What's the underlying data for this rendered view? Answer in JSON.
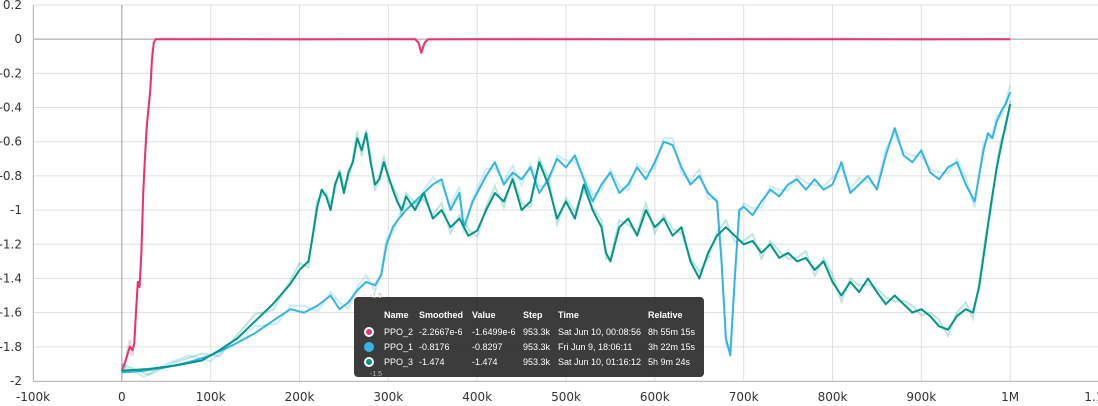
{
  "chart_data": {
    "type": "line",
    "title": "",
    "xlabel": "",
    "ylabel": "",
    "xlim": [
      -100000,
      1100000
    ],
    "ylim": [
      -2,
      0.2
    ],
    "grid": true,
    "x_ticks": [
      -100000,
      0,
      100000,
      200000,
      300000,
      400000,
      500000,
      600000,
      700000,
      800000,
      900000,
      1000000,
      1100000
    ],
    "x_tick_labels": [
      "-100k",
      "0",
      "100k",
      "200k",
      "300k",
      "400k",
      "500k",
      "600k",
      "700k",
      "800k",
      "900k",
      "1M",
      "1.1M"
    ],
    "y_ticks": [
      0.2,
      0,
      -0.2,
      -0.4,
      -0.6,
      -0.8,
      -1,
      -1.2,
      -1.4,
      -1.6,
      -1.8,
      -2
    ],
    "y_tick_labels": [
      "0.2",
      "0",
      "-0.2",
      "-0.4",
      "-0.6",
      "-0.8",
      "-1",
      "-1.2",
      "-1.4",
      "-1.6",
      "-1.8",
      "-2"
    ],
    "series": [
      {
        "name": "PPO_2",
        "color": "#e8336f",
        "points": [
          [
            0,
            -1.94
          ],
          [
            3000,
            -1.9
          ],
          [
            6000,
            -1.85
          ],
          [
            9000,
            -1.8
          ],
          [
            12000,
            -1.82
          ],
          [
            14000,
            -1.78
          ],
          [
            16000,
            -1.6
          ],
          [
            18000,
            -1.42
          ],
          [
            20000,
            -1.45
          ],
          [
            22000,
            -1.25
          ],
          [
            24000,
            -0.9
          ],
          [
            26000,
            -0.7
          ],
          [
            28000,
            -0.52
          ],
          [
            30000,
            -0.4
          ],
          [
            32000,
            -0.3
          ],
          [
            34000,
            -0.12
          ],
          [
            36000,
            -0.02
          ],
          [
            38000,
            0
          ],
          [
            100000,
            0
          ],
          [
            200000,
            0
          ],
          [
            300000,
            0
          ],
          [
            330000,
            0
          ],
          [
            334000,
            -0.02
          ],
          [
            337000,
            -0.08
          ],
          [
            341000,
            -0.02
          ],
          [
            345000,
            0
          ],
          [
            400000,
            0
          ],
          [
            500000,
            0
          ],
          [
            600000,
            0
          ],
          [
            700000,
            0
          ],
          [
            800000,
            0
          ],
          [
            900000,
            0
          ],
          [
            1000000,
            0
          ]
        ]
      },
      {
        "name": "PPO_1",
        "color": "#33b5e5",
        "points": [
          [
            0,
            -1.95
          ],
          [
            25000,
            -1.94
          ],
          [
            50000,
            -1.92
          ],
          [
            75000,
            -1.89
          ],
          [
            100000,
            -1.85
          ],
          [
            125000,
            -1.79
          ],
          [
            150000,
            -1.72
          ],
          [
            175000,
            -1.63
          ],
          [
            190000,
            -1.58
          ],
          [
            205000,
            -1.6
          ],
          [
            220000,
            -1.56
          ],
          [
            235000,
            -1.5
          ],
          [
            245000,
            -1.58
          ],
          [
            255000,
            -1.54
          ],
          [
            265000,
            -1.47
          ],
          [
            275000,
            -1.42
          ],
          [
            285000,
            -1.44
          ],
          [
            292000,
            -1.38
          ],
          [
            298000,
            -1.2
          ],
          [
            305000,
            -1.1
          ],
          [
            312000,
            -1.05
          ],
          [
            320000,
            -1.0
          ],
          [
            330000,
            -0.95
          ],
          [
            340000,
            -0.9
          ],
          [
            350000,
            -0.85
          ],
          [
            360000,
            -0.82
          ],
          [
            370000,
            -1.0
          ],
          [
            380000,
            -0.9
          ],
          [
            385000,
            -1.1
          ],
          [
            395000,
            -0.95
          ],
          [
            410000,
            -0.8
          ],
          [
            420000,
            -0.72
          ],
          [
            430000,
            -0.85
          ],
          [
            440000,
            -0.78
          ],
          [
            450000,
            -0.82
          ],
          [
            460000,
            -0.75
          ],
          [
            470000,
            -0.9
          ],
          [
            480000,
            -0.82
          ],
          [
            490000,
            -0.7
          ],
          [
            500000,
            -0.75
          ],
          [
            510000,
            -0.68
          ],
          [
            520000,
            -0.82
          ],
          [
            530000,
            -0.95
          ],
          [
            540000,
            -0.85
          ],
          [
            550000,
            -0.78
          ],
          [
            560000,
            -0.9
          ],
          [
            570000,
            -0.85
          ],
          [
            580000,
            -0.75
          ],
          [
            590000,
            -0.82
          ],
          [
            600000,
            -0.72
          ],
          [
            610000,
            -0.6
          ],
          [
            620000,
            -0.62
          ],
          [
            630000,
            -0.75
          ],
          [
            640000,
            -0.85
          ],
          [
            650000,
            -0.8
          ],
          [
            660000,
            -0.9
          ],
          [
            670000,
            -0.95
          ],
          [
            675000,
            -1.3
          ],
          [
            680000,
            -1.75
          ],
          [
            685000,
            -1.85
          ],
          [
            690000,
            -1.4
          ],
          [
            695000,
            -1.0
          ],
          [
            700000,
            -0.98
          ],
          [
            710000,
            -1.03
          ],
          [
            720000,
            -0.95
          ],
          [
            730000,
            -0.88
          ],
          [
            740000,
            -0.92
          ],
          [
            750000,
            -0.85
          ],
          [
            760000,
            -0.82
          ],
          [
            770000,
            -0.88
          ],
          [
            780000,
            -0.82
          ],
          [
            790000,
            -0.88
          ],
          [
            800000,
            -0.85
          ],
          [
            810000,
            -0.72
          ],
          [
            820000,
            -0.9
          ],
          [
            830000,
            -0.85
          ],
          [
            840000,
            -0.8
          ],
          [
            850000,
            -0.88
          ],
          [
            860000,
            -0.68
          ],
          [
            870000,
            -0.52
          ],
          [
            880000,
            -0.68
          ],
          [
            890000,
            -0.72
          ],
          [
            900000,
            -0.65
          ],
          [
            910000,
            -0.78
          ],
          [
            920000,
            -0.82
          ],
          [
            930000,
            -0.75
          ],
          [
            940000,
            -0.72
          ],
          [
            950000,
            -0.85
          ],
          [
            960000,
            -0.95
          ],
          [
            965000,
            -0.8
          ],
          [
            970000,
            -0.65
          ],
          [
            975000,
            -0.55
          ],
          [
            980000,
            -0.58
          ],
          [
            985000,
            -0.48
          ],
          [
            990000,
            -0.42
          ],
          [
            995000,
            -0.38
          ],
          [
            1000000,
            -0.31
          ]
        ]
      },
      {
        "name": "PPO_3",
        "color": "#009688",
        "points": [
          [
            0,
            -1.94
          ],
          [
            30000,
            -1.93
          ],
          [
            60000,
            -1.91
          ],
          [
            90000,
            -1.88
          ],
          [
            110000,
            -1.82
          ],
          [
            130000,
            -1.75
          ],
          [
            150000,
            -1.65
          ],
          [
            170000,
            -1.55
          ],
          [
            190000,
            -1.43
          ],
          [
            200000,
            -1.35
          ],
          [
            210000,
            -1.3
          ],
          [
            215000,
            -1.15
          ],
          [
            220000,
            -0.98
          ],
          [
            225000,
            -0.88
          ],
          [
            230000,
            -0.92
          ],
          [
            235000,
            -1.0
          ],
          [
            240000,
            -0.85
          ],
          [
            245000,
            -0.78
          ],
          [
            250000,
            -0.9
          ],
          [
            255000,
            -0.78
          ],
          [
            260000,
            -0.72
          ],
          [
            265000,
            -0.58
          ],
          [
            270000,
            -0.65
          ],
          [
            275000,
            -0.55
          ],
          [
            280000,
            -0.72
          ],
          [
            285000,
            -0.85
          ],
          [
            290000,
            -0.82
          ],
          [
            295000,
            -0.72
          ],
          [
            300000,
            -0.8
          ],
          [
            305000,
            -0.88
          ],
          [
            310000,
            -0.95
          ],
          [
            315000,
            -1.0
          ],
          [
            320000,
            -0.92
          ],
          [
            330000,
            -1.0
          ],
          [
            340000,
            -0.9
          ],
          [
            350000,
            -1.05
          ],
          [
            360000,
            -1.0
          ],
          [
            370000,
            -1.1
          ],
          [
            380000,
            -1.05
          ],
          [
            390000,
            -1.15
          ],
          [
            400000,
            -1.12
          ],
          [
            410000,
            -1.0
          ],
          [
            420000,
            -0.9
          ],
          [
            430000,
            -0.95
          ],
          [
            440000,
            -0.82
          ],
          [
            450000,
            -1.0
          ],
          [
            460000,
            -0.95
          ],
          [
            470000,
            -0.72
          ],
          [
            480000,
            -0.85
          ],
          [
            490000,
            -1.05
          ],
          [
            500000,
            -0.95
          ],
          [
            510000,
            -1.05
          ],
          [
            520000,
            -0.85
          ],
          [
            530000,
            -1.0
          ],
          [
            540000,
            -1.1
          ],
          [
            545000,
            -1.25
          ],
          [
            550000,
            -1.3
          ],
          [
            560000,
            -1.1
          ],
          [
            570000,
            -1.05
          ],
          [
            580000,
            -1.15
          ],
          [
            590000,
            -1.0
          ],
          [
            600000,
            -1.1
          ],
          [
            610000,
            -1.05
          ],
          [
            620000,
            -1.15
          ],
          [
            630000,
            -1.1
          ],
          [
            640000,
            -1.3
          ],
          [
            650000,
            -1.4
          ],
          [
            660000,
            -1.25
          ],
          [
            670000,
            -1.15
          ],
          [
            680000,
            -1.1
          ],
          [
            690000,
            -1.15
          ],
          [
            700000,
            -1.2
          ],
          [
            710000,
            -1.18
          ],
          [
            720000,
            -1.25
          ],
          [
            730000,
            -1.2
          ],
          [
            740000,
            -1.28
          ],
          [
            750000,
            -1.25
          ],
          [
            760000,
            -1.3
          ],
          [
            770000,
            -1.28
          ],
          [
            780000,
            -1.35
          ],
          [
            790000,
            -1.3
          ],
          [
            800000,
            -1.42
          ],
          [
            810000,
            -1.5
          ],
          [
            820000,
            -1.42
          ],
          [
            830000,
            -1.48
          ],
          [
            840000,
            -1.4
          ],
          [
            850000,
            -1.48
          ],
          [
            860000,
            -1.55
          ],
          [
            870000,
            -1.5
          ],
          [
            880000,
            -1.55
          ],
          [
            890000,
            -1.6
          ],
          [
            900000,
            -1.58
          ],
          [
            910000,
            -1.62
          ],
          [
            920000,
            -1.68
          ],
          [
            930000,
            -1.7
          ],
          [
            940000,
            -1.62
          ],
          [
            950000,
            -1.58
          ],
          [
            958000,
            -1.6
          ],
          [
            965000,
            -1.45
          ],
          [
            972000,
            -1.2
          ],
          [
            978000,
            -0.98
          ],
          [
            985000,
            -0.75
          ],
          [
            990000,
            -0.62
          ],
          [
            995000,
            -0.5
          ],
          [
            1000000,
            -0.38
          ]
        ]
      }
    ]
  },
  "tooltip": {
    "headers": {
      "name": "Name",
      "smoothed": "Smoothed",
      "value": "Value",
      "step": "Step",
      "time": "Time",
      "relative": "Relative"
    },
    "faded_top": "-1.5",
    "faded_bottom": "-1.5",
    "rows": [
      {
        "name": "PPO_2",
        "smoothed": "-2.2667e-6",
        "value": "-1.6499e-6",
        "step": "953.3k",
        "time": "Sat Jun 10, 00:08:56",
        "relative": "8h 55m 15s",
        "color": "#e8336f"
      },
      {
        "name": "PPO_1",
        "smoothed": "-0.8176",
        "value": "-0.8297",
        "step": "953.3k",
        "time": "Fri Jun 9, 18:06:11",
        "relative": "3h 22m 15s",
        "color": "#33b5e5"
      },
      {
        "name": "PPO_3",
        "smoothed": "-1.474",
        "value": "-1.474",
        "step": "953.3k",
        "time": "Sat Jun 10, 01:16:12",
        "relative": "5h 9m 24s",
        "color": "#009688"
      }
    ]
  }
}
